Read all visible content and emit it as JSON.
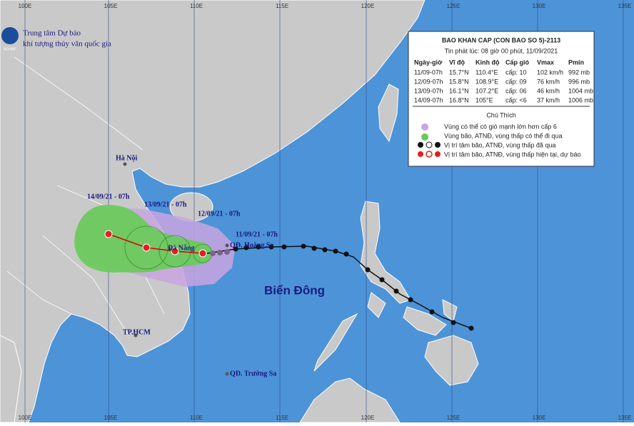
{
  "header": {
    "org_line1": "Trung tâm Dự báo",
    "org_line2": "khí tượng thủy văn quốc gia",
    "logo_text": "NCHMF"
  },
  "graticule": {
    "top_labels": [
      "100E",
      "105E",
      "110E",
      "115E",
      "120E",
      "125E",
      "130E",
      "135E"
    ],
    "bottom_labels": [
      "100E",
      "105E",
      "110E",
      "115E",
      "120E",
      "125E",
      "130E",
      "135E"
    ]
  },
  "places": {
    "hanoi": "Hà Nội",
    "danang": "Đà Nẵng",
    "hcm": "TP.HCM",
    "hoangsa": "QĐ. Hoàng Sa",
    "truongsa": "QĐ. Trường Sa",
    "sea": "Biển Đông"
  },
  "track_labels": [
    "14/09/21 - 07h",
    "13/09/21 - 07h",
    "12/09/21 - 07h",
    "11/09/21 - 07h"
  ],
  "info": {
    "title": "BAO KHAN CAP (CON BAO SO 5)-2113",
    "issued": "Tin phát lúc: 08 giờ 00 phút, 11/09/2021",
    "columns": [
      "Ngày-giờ",
      "Vĩ độ",
      "Kinh độ",
      "Cấp gió",
      "Vmax",
      "Pmin"
    ],
    "rows": [
      [
        "11/09-07h",
        "15.7°N",
        "110.4°E",
        "cấp: 10",
        "102 km/h",
        "992 mb"
      ],
      [
        "12/09-07h",
        "15.8°N",
        "108.9°E",
        "cấp: 09",
        "76 km/h",
        "996 mb"
      ],
      [
        "13/09-07h",
        "16.1°N",
        "107.2°E",
        "cấp: 06",
        "46 km/h",
        "1004 mb"
      ],
      [
        "14/09-07h",
        "16.8°N",
        "105°E",
        "cấp: <6",
        "37 km/h",
        "1006 mb"
      ]
    ]
  },
  "legend": {
    "title": "Chú Thích",
    "items": [
      "Vùng có thể có gió mạnh lớn hơn cấp 6",
      "Vùng bão, ATNĐ, vùng thấp có thể đi qua",
      "Vị trí tâm bão, ATNĐ, vùng thấp đã qua",
      "Vị trí tâm bão, ATNĐ, vùng thấp hiện tại, dự báo"
    ]
  }
}
